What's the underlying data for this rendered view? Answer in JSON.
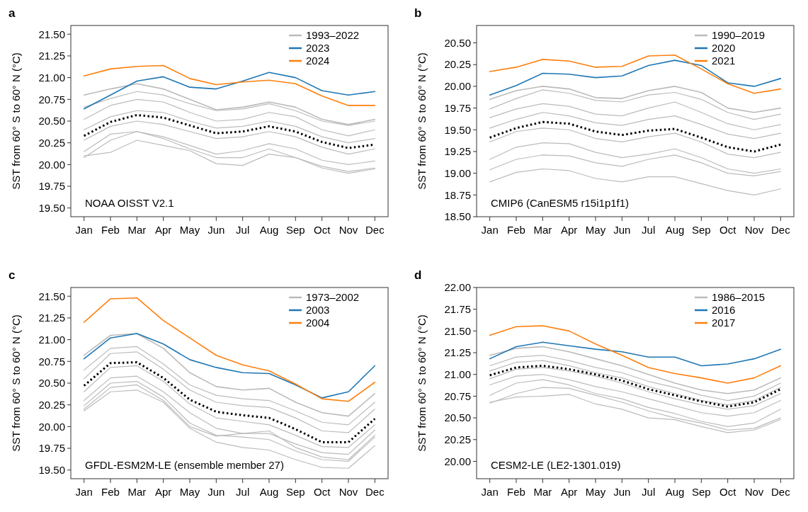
{
  "chart_data": [
    {
      "type": "line",
      "title": "a",
      "ylabel": "SST from 60° S to 60° N (°C)",
      "annotations": [
        "NOAA OISST V2.1"
      ],
      "legend": "top right",
      "categories": [
        "Jan",
        "Feb",
        "Mar",
        "Apr",
        "May",
        "Jun",
        "Jul",
        "Aug",
        "Sep",
        "Oct",
        "Nov",
        "Dec"
      ],
      "ylim": [
        19.4,
        21.6
      ],
      "yticks": [
        {
          "value": 19.5,
          "label": "19.50"
        },
        {
          "value": 19.75,
          "label": "19.75"
        },
        {
          "value": 20,
          "label": "20.00"
        },
        {
          "value": 20.25,
          "label": "20.25"
        },
        {
          "value": 20.5,
          "label": "20.50"
        },
        {
          "value": 20.75,
          "label": "20.75"
        },
        {
          "value": 21,
          "label": "21.00"
        },
        {
          "value": 21.25,
          "label": "21.25"
        },
        {
          "value": 21.5,
          "label": "21.50"
        }
      ],
      "series": [
        {
          "name": "1993–2022",
          "color": "#bbbbbb",
          "values": [
            20.8,
            20.87,
            20.93,
            20.87,
            20.75,
            20.63,
            20.66,
            20.72,
            20.66,
            20.52,
            20.46,
            20.52
          ]
        },
        {
          "color": "#bbbbbb",
          "values": [
            20.66,
            20.76,
            20.84,
            20.8,
            20.7,
            20.62,
            20.64,
            20.7,
            20.62,
            20.5,
            20.45,
            20.5
          ]
        },
        {
          "color": "#bbbbbb",
          "values": [
            20.52,
            20.68,
            20.75,
            20.72,
            20.6,
            20.5,
            20.52,
            20.6,
            20.55,
            20.4,
            20.33,
            20.4
          ]
        },
        {
          "color": "#bbbbbb",
          "values": [
            20.4,
            20.55,
            20.62,
            20.6,
            20.5,
            20.42,
            20.44,
            20.5,
            20.44,
            20.32,
            20.25,
            20.3
          ]
        },
        {
          "color": "#bbbbbb",
          "values": [
            20.28,
            20.44,
            20.5,
            20.46,
            20.38,
            20.3,
            20.32,
            20.38,
            20.32,
            20.2,
            20.12,
            20.18
          ]
        },
        {
          "color": "#bbbbbb",
          "values": [
            20.15,
            20.35,
            20.38,
            20.32,
            20.22,
            20.12,
            20.16,
            20.24,
            20.18,
            20.05,
            20.0,
            20.04
          ]
        },
        {
          "color": "#bbbbbb",
          "values": [
            20.08,
            20.28,
            20.38,
            20.3,
            20.18,
            20.08,
            20.08,
            20.18,
            20.08,
            19.98,
            19.92,
            19.96
          ]
        },
        {
          "color": "#bbbbbb",
          "values": [
            20.1,
            20.14,
            20.28,
            20.22,
            20.16,
            20.01,
            19.99,
            20.12,
            20.08,
            19.96,
            19.9,
            19.95
          ]
        },
        {
          "color": "#000000",
          "line_style": "dotted",
          "values": [
            20.33,
            20.49,
            20.57,
            20.54,
            20.45,
            20.36,
            20.38,
            20.44,
            20.38,
            20.26,
            20.19,
            20.23
          ]
        },
        {
          "name": "2023",
          "color": "#1f77b4",
          "values": [
            20.64,
            20.8,
            20.96,
            21.01,
            20.89,
            20.87,
            20.96,
            21.06,
            21.0,
            20.85,
            20.8,
            20.84
          ]
        },
        {
          "name": "2024",
          "color": "#ff7f0e",
          "values": [
            21.02,
            21.1,
            21.13,
            21.14,
            20.99,
            20.92,
            20.95,
            20.97,
            20.93,
            20.79,
            20.68,
            20.68
          ]
        }
      ]
    },
    {
      "type": "line",
      "title": "b",
      "ylabel": "SST from 60° S to 60° N (°C)",
      "annotations": [
        "CMIP6 (CanESM5 r15i1p1f1)"
      ],
      "legend": "top right",
      "categories": [
        "Jan",
        "Feb",
        "Mar",
        "Apr",
        "May",
        "Jun",
        "Jul",
        "Aug",
        "Sep",
        "Oct",
        "Nov",
        "Dec"
      ],
      "ylim": [
        18.5,
        20.7
      ],
      "yticks": [
        {
          "value": 18.5,
          "label": "18.50"
        },
        {
          "value": 18.75,
          "label": "18.75"
        },
        {
          "value": 19,
          "label": "19.00"
        },
        {
          "value": 19.25,
          "label": "19.25"
        },
        {
          "value": 19.5,
          "label": "19.50"
        },
        {
          "value": 19.75,
          "label": "19.75"
        },
        {
          "value": 20,
          "label": "20.00"
        },
        {
          "value": 20.25,
          "label": "20.25"
        },
        {
          "value": 20.5,
          "label": "20.50"
        }
      ],
      "series": [
        {
          "name": "1990–2019",
          "color": "#bbbbbb",
          "values": [
            19.85,
            19.95,
            20.0,
            19.97,
            19.87,
            19.86,
            19.95,
            20.0,
            19.93,
            19.75,
            19.7,
            19.75
          ]
        },
        {
          "color": "#bbbbbb",
          "values": [
            19.74,
            19.86,
            19.96,
            19.92,
            19.84,
            19.82,
            19.9,
            19.93,
            19.85,
            19.7,
            19.62,
            19.68
          ]
        },
        {
          "color": "#bbbbbb",
          "values": [
            19.64,
            19.74,
            19.8,
            19.77,
            19.68,
            19.66,
            19.75,
            19.82,
            19.7,
            19.57,
            19.5,
            19.56
          ]
        },
        {
          "color": "#bbbbbb",
          "values": [
            19.52,
            19.62,
            19.7,
            19.66,
            19.58,
            19.55,
            19.62,
            19.66,
            19.56,
            19.45,
            19.4,
            19.46
          ]
        },
        {
          "color": "#bbbbbb",
          "values": [
            19.36,
            19.48,
            19.52,
            19.5,
            19.4,
            19.36,
            19.42,
            19.46,
            19.36,
            19.22,
            19.18,
            19.24
          ]
        },
        {
          "color": "#bbbbbb",
          "values": [
            19.16,
            19.3,
            19.35,
            19.34,
            19.24,
            19.18,
            19.22,
            19.28,
            19.18,
            19.05,
            19.0,
            19.05
          ]
        },
        {
          "color": "#bbbbbb",
          "values": [
            19.04,
            19.16,
            19.21,
            19.2,
            19.12,
            19.08,
            19.16,
            19.21,
            19.12,
            19.0,
            18.97,
            19.02
          ]
        },
        {
          "color": "#bbbbbb",
          "values": [
            18.9,
            19.01,
            19.05,
            19.03,
            18.94,
            18.9,
            18.96,
            18.96,
            18.88,
            18.8,
            18.75,
            18.82
          ]
        },
        {
          "color": "#000000",
          "line_style": "dotted",
          "values": [
            19.41,
            19.52,
            19.59,
            19.57,
            19.48,
            19.44,
            19.49,
            19.51,
            19.41,
            19.3,
            19.25,
            19.33
          ]
        },
        {
          "name": "2020",
          "color": "#1f77b4",
          "values": [
            19.9,
            20.01,
            20.15,
            20.14,
            20.1,
            20.12,
            20.24,
            20.3,
            20.24,
            20.04,
            20.0,
            20.09
          ]
        },
        {
          "name": "2021",
          "color": "#ff7f0e",
          "values": [
            20.17,
            20.22,
            20.31,
            20.29,
            20.22,
            20.23,
            20.35,
            20.36,
            20.2,
            20.03,
            19.92,
            19.97
          ]
        }
      ]
    },
    {
      "type": "line",
      "title": "c",
      "ylabel": "SST from 60° S to 60° N (°C)",
      "annotations": [
        "GFDL-ESM2M-LE (ensemble member 27)"
      ],
      "legend": "top right",
      "categories": [
        "Jan",
        "Feb",
        "Mar",
        "Apr",
        "May",
        "Jun",
        "Jul",
        "Aug",
        "Sep",
        "Oct",
        "Nov",
        "Dec"
      ],
      "ylim": [
        19.4,
        21.6
      ],
      "yticks": [
        {
          "value": 19.5,
          "label": "19.50"
        },
        {
          "value": 19.75,
          "label": "19.75"
        },
        {
          "value": 20,
          "label": "20.00"
        },
        {
          "value": 20.25,
          "label": "20.25"
        },
        {
          "value": 20.5,
          "label": "20.50"
        },
        {
          "value": 20.75,
          "label": "20.75"
        },
        {
          "value": 21,
          "label": "21.00"
        },
        {
          "value": 21.25,
          "label": "21.25"
        },
        {
          "value": 21.5,
          "label": "21.50"
        }
      ],
      "series": [
        {
          "name": "1973–2002",
          "color": "#bbbbbb",
          "values": [
            20.82,
            21.05,
            21.07,
            20.9,
            20.62,
            20.46,
            20.42,
            20.44,
            20.28,
            20.16,
            20.12,
            20.38
          ]
        },
        {
          "color": "#bbbbbb",
          "values": [
            20.65,
            20.9,
            20.92,
            20.72,
            20.48,
            20.36,
            20.32,
            20.3,
            20.18,
            20.05,
            20.02,
            20.28
          ]
        },
        {
          "color": "#bbbbbb",
          "values": [
            20.55,
            20.84,
            20.86,
            20.66,
            20.42,
            20.28,
            20.24,
            20.22,
            20.1,
            19.95,
            19.93,
            20.2
          ]
        },
        {
          "color": "#bbbbbb",
          "values": [
            20.4,
            20.68,
            20.7,
            20.52,
            20.26,
            20.1,
            20.06,
            20.02,
            19.9,
            19.77,
            19.76,
            20.02
          ]
        },
        {
          "color": "#bbbbbb",
          "values": [
            20.3,
            20.56,
            20.58,
            20.4,
            20.16,
            19.98,
            19.92,
            19.92,
            19.8,
            19.7,
            19.68,
            19.96
          ]
        },
        {
          "color": "#bbbbbb",
          "values": [
            20.24,
            20.5,
            20.52,
            20.34,
            20.04,
            19.9,
            19.88,
            19.85,
            19.72,
            19.62,
            19.6,
            19.88
          ]
        },
        {
          "color": "#bbbbbb",
          "values": [
            20.2,
            20.45,
            20.48,
            20.3,
            20.0,
            19.89,
            19.92,
            19.95,
            19.76,
            19.65,
            19.62,
            19.9
          ]
        },
        {
          "color": "#bbbbbb",
          "values": [
            20.18,
            20.4,
            20.42,
            20.28,
            19.98,
            19.82,
            19.76,
            19.73,
            19.62,
            19.53,
            19.52,
            19.78
          ]
        },
        {
          "color": "#000000",
          "line_style": "dotted",
          "values": [
            20.47,
            20.73,
            20.74,
            20.56,
            20.31,
            20.17,
            20.13,
            20.1,
            19.97,
            19.82,
            19.82,
            20.09
          ]
        },
        {
          "name": "2003",
          "color": "#1f77b4",
          "values": [
            20.78,
            21.02,
            21.07,
            20.95,
            20.77,
            20.68,
            20.62,
            20.61,
            20.48,
            20.33,
            20.4,
            20.7
          ]
        },
        {
          "name": "2004",
          "color": "#ff7f0e",
          "values": [
            21.2,
            21.47,
            21.48,
            21.22,
            21.02,
            20.82,
            20.71,
            20.64,
            20.49,
            20.32,
            20.29,
            20.51
          ]
        }
      ]
    },
    {
      "type": "line",
      "title": "d",
      "ylabel": "SST from 60° S to 60° N (°C)",
      "annotations": [
        "CESM2-LE (LE2-1301.019)"
      ],
      "legend": "top right",
      "categories": [
        "Jan",
        "Feb",
        "Mar",
        "Apr",
        "May",
        "Jun",
        "Jul",
        "Aug",
        "Sep",
        "Oct",
        "Nov",
        "Dec"
      ],
      "ylim": [
        19.8,
        22.0
      ],
      "yticks": [
        {
          "value": 20,
          "label": "20.00"
        },
        {
          "value": 20.25,
          "label": "20.25"
        },
        {
          "value": 20.5,
          "label": "20.50"
        },
        {
          "value": 20.75,
          "label": "20.75"
        },
        {
          "value": 21,
          "label": "21.00"
        },
        {
          "value": 21.25,
          "label": "21.25"
        },
        {
          "value": 21.5,
          "label": "21.50"
        },
        {
          "value": 21.75,
          "label": "21.75"
        },
        {
          "value": 22,
          "label": "22.00"
        }
      ],
      "series": [
        {
          "name": "1986–2015",
          "color": "#bbbbbb",
          "values": [
            21.22,
            21.3,
            21.32,
            21.26,
            21.18,
            21.1,
            21.0,
            20.9,
            20.82,
            20.78,
            20.82,
            20.96
          ]
        },
        {
          "color": "#bbbbbb",
          "values": [
            21.1,
            21.2,
            21.22,
            21.16,
            21.08,
            21.02,
            20.92,
            20.85,
            20.76,
            20.7,
            20.75,
            20.9
          ]
        },
        {
          "color": "#bbbbbb",
          "values": [
            21.04,
            21.14,
            21.16,
            21.1,
            21.02,
            20.96,
            20.86,
            20.78,
            20.7,
            20.65,
            20.7,
            20.85
          ]
        },
        {
          "color": "#bbbbbb",
          "values": [
            20.95,
            21.06,
            21.08,
            21.04,
            20.98,
            20.9,
            20.8,
            20.72,
            20.65,
            20.6,
            20.64,
            20.78
          ]
        },
        {
          "color": "#bbbbbb",
          "values": [
            20.88,
            20.98,
            21.0,
            20.94,
            20.86,
            20.8,
            20.72,
            20.64,
            20.56,
            20.52,
            20.56,
            20.7
          ]
        },
        {
          "color": "#bbbbbb",
          "values": [
            20.76,
            20.9,
            20.94,
            20.88,
            20.78,
            20.72,
            20.62,
            20.55,
            20.46,
            20.4,
            20.44,
            20.6
          ]
        },
        {
          "color": "#bbbbbb",
          "values": [
            20.67,
            20.78,
            20.85,
            20.84,
            20.76,
            20.68,
            20.58,
            20.5,
            20.44,
            20.36,
            20.38,
            20.5
          ]
        },
        {
          "color": "#bbbbbb",
          "values": [
            20.68,
            20.74,
            20.75,
            20.77,
            20.66,
            20.6,
            20.5,
            20.48,
            20.4,
            20.33,
            20.36,
            20.48
          ]
        },
        {
          "color": "#000000",
          "line_style": "dotted",
          "values": [
            20.99,
            21.08,
            21.1,
            21.06,
            21.0,
            20.93,
            20.83,
            20.76,
            20.69,
            20.63,
            20.68,
            20.83
          ]
        },
        {
          "name": "2016",
          "color": "#1f77b4",
          "values": [
            21.18,
            21.32,
            21.37,
            21.33,
            21.29,
            21.26,
            21.2,
            21.2,
            21.1,
            21.12,
            21.18,
            21.29
          ]
        },
        {
          "name": "2017",
          "color": "#ff7f0e",
          "values": [
            21.45,
            21.55,
            21.56,
            21.5,
            21.35,
            21.22,
            21.08,
            21.01,
            20.96,
            20.9,
            20.96,
            21.1
          ]
        }
      ]
    }
  ]
}
